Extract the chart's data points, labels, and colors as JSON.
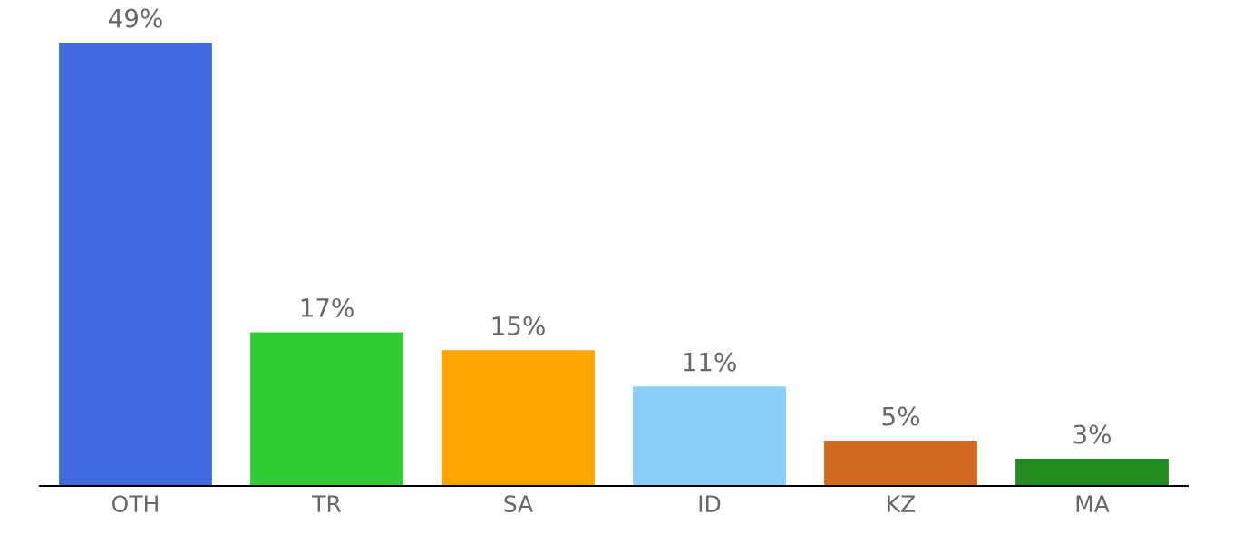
{
  "chart_data": {
    "type": "bar",
    "categories": [
      "OTH",
      "TR",
      "SA",
      "ID",
      "KZ",
      "MA"
    ],
    "values": [
      49,
      17,
      15,
      11,
      5,
      3
    ],
    "colors": [
      "#4169e1",
      "#32cd32",
      "#ffa500",
      "#87cefa",
      "#d2691e",
      "#228b22"
    ],
    "value_labels": [
      "49%",
      "17%",
      "15%",
      "11%",
      "5%",
      "3%"
    ],
    "grid": false,
    "legend": false
  }
}
